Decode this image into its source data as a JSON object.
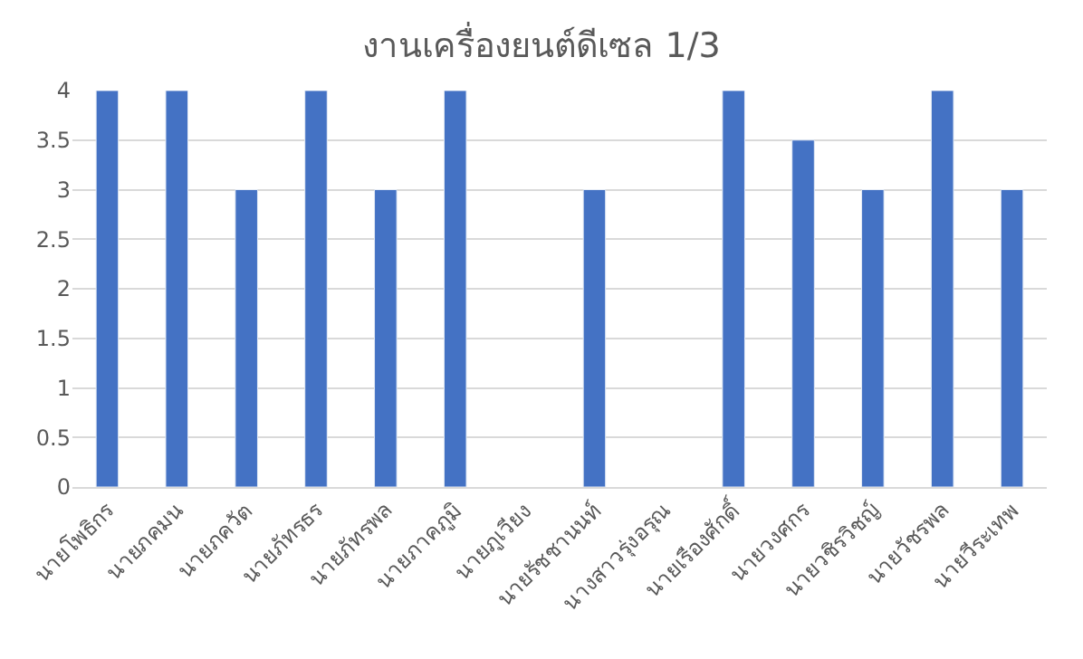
{
  "chart_data": {
    "type": "bar",
    "title": "งานเครื่องยนต์ดีเซล 1/3",
    "categories": [
      "นายโพธิกร",
      "นายภคมน",
      "นายภควัต",
      "นายภัทรธร",
      "นายภัทรพล",
      "นายภาคภูมิ",
      "นายภูเวียง",
      "นายรัชชานนท์",
      "นางสาวรุ่งอรุณ",
      "นายเรืองศักดิ์",
      "นายวงศกร",
      "นายวชิรวิชญ์",
      "นายวัชรพล",
      "นายวีระเทพ"
    ],
    "values": [
      4,
      4,
      3,
      4,
      3,
      4,
      null,
      3,
      null,
      4,
      3.5,
      3,
      4,
      3
    ],
    "color": "#4472c4",
    "ylim": [
      0,
      4
    ],
    "yticks": [
      0,
      0.5,
      1,
      1.5,
      2,
      2.5,
      3,
      3.5,
      4
    ],
    "grid": "y"
  }
}
